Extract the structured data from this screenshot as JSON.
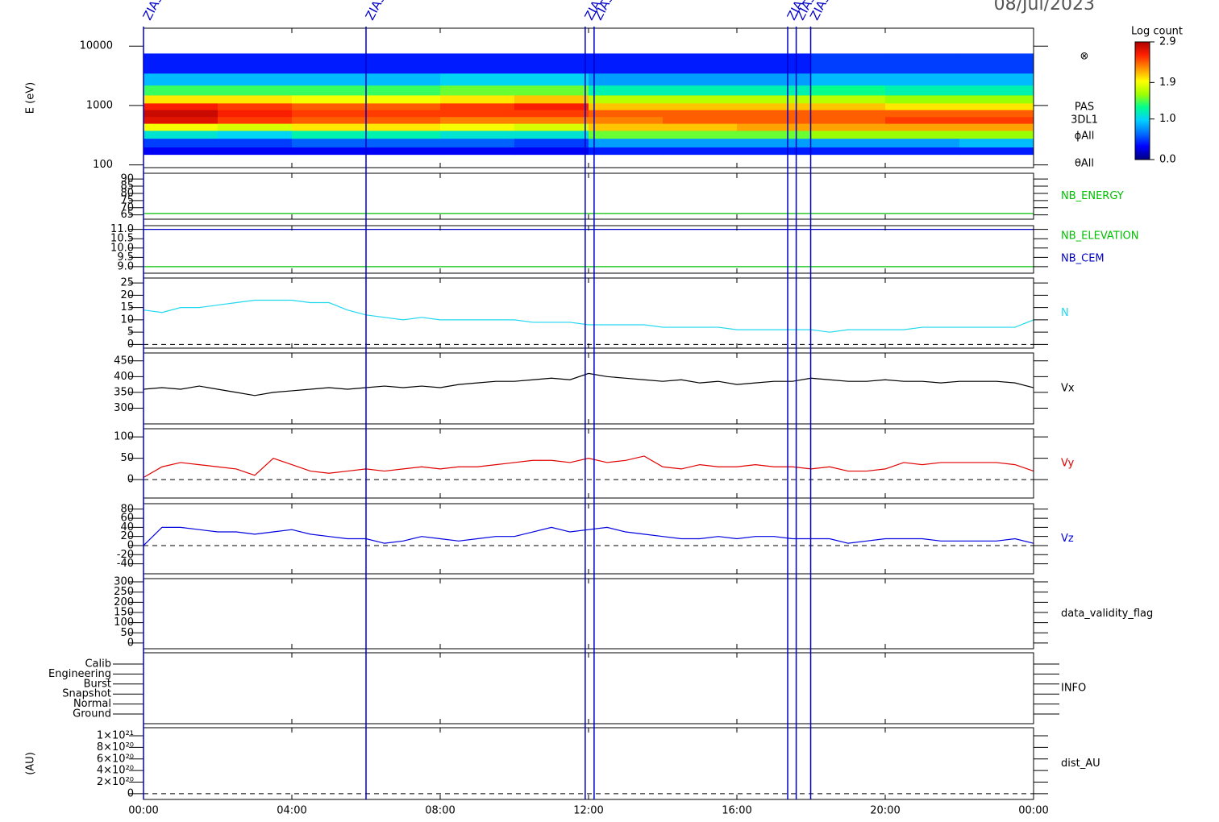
{
  "chart_data": {
    "type": "multi-panel",
    "date": "08/Jul/2023",
    "xlim": [
      0,
      24
    ],
    "xticks": [
      {
        "value": 0,
        "label": "00:00"
      },
      {
        "value": 4,
        "label": "04:00"
      },
      {
        "value": 8,
        "label": "08:00"
      },
      {
        "value": 12,
        "label": "12:00"
      },
      {
        "value": 16,
        "label": "16:00"
      },
      {
        "value": 20,
        "label": "20:00"
      },
      {
        "value": 24,
        "label": "00:00"
      }
    ],
    "x": [
      0,
      0.5,
      1,
      1.5,
      2,
      2.5,
      3,
      3.5,
      4,
      4.5,
      5,
      5.5,
      6,
      6.5,
      7,
      7.5,
      8,
      8.5,
      9,
      9.5,
      10,
      10.5,
      11,
      11.5,
      12,
      12.5,
      13,
      13.5,
      14,
      14.5,
      15,
      15.5,
      16,
      16.5,
      17,
      17.5,
      18,
      18.5,
      19,
      19.5,
      20,
      20.5,
      21,
      21.5,
      22,
      22.5,
      23,
      23.5,
      24
    ],
    "markers": [
      {
        "x": 0,
        "label": "ZIAS"
      },
      {
        "x": 6.0,
        "label": "ZIAS"
      },
      {
        "x": 11.91,
        "label": "ZIAS"
      },
      {
        "x": 12.15,
        "label": "ZIAS"
      },
      {
        "x": 17.37,
        "label": "ZIAS"
      },
      {
        "x": 17.6,
        "label": "ZIAS"
      },
      {
        "x": 17.99,
        "label": "ZIAS"
      }
    ],
    "panels": [
      {
        "type": "spectrogram",
        "ylabel": "E (eV)",
        "log": true,
        "ylim": [
          90,
          20000
        ],
        "yticks": [
          100,
          1000,
          10000
        ],
        "side_labels": [
          "⊗",
          "PAS",
          "3DL1",
          "ϕAll",
          "θAll"
        ],
        "colorbar_label": "Log count",
        "zlim": [
          0,
          2.9
        ],
        "zticks": [
          {
            "value": 0,
            "label": "0.0"
          },
          {
            "value": 1,
            "label": "1.0"
          },
          1.9,
          2.9
        ],
        "colormap": [
          "#000080",
          "#0000ff",
          "#0070ff",
          "#00d0ff",
          "#00ff90",
          "#a0ff00",
          "#ffff00",
          "#ff9000",
          "#ff2000",
          "#b00000"
        ],
        "xbins": [
          0,
          2,
          4,
          6,
          8,
          10,
          12,
          14,
          16,
          18,
          20,
          22,
          24
        ],
        "ybins": [
          150,
          200,
          280,
          380,
          500,
          650,
          850,
          1100,
          1500,
          2200,
          3500,
          7500
        ],
        "z": [
          [
            0.3,
            0.5,
            1.1,
            1.9,
            2.7,
            2.8,
            2.6,
            2.0,
            1.4,
            0.9,
            0.4
          ],
          [
            0.3,
            0.5,
            1.0,
            1.8,
            2.5,
            2.6,
            2.5,
            2.0,
            1.4,
            0.9,
            0.4
          ],
          [
            0.3,
            0.6,
            1.2,
            2.0,
            2.4,
            2.5,
            2.4,
            1.9,
            1.4,
            0.9,
            0.4
          ],
          [
            0.3,
            0.6,
            1.2,
            2.0,
            2.4,
            2.5,
            2.4,
            1.9,
            1.4,
            0.9,
            0.4
          ],
          [
            0.3,
            0.6,
            1.1,
            1.9,
            2.3,
            2.5,
            2.5,
            2.0,
            1.5,
            1.0,
            0.4
          ],
          [
            0.3,
            0.5,
            1.1,
            1.8,
            2.3,
            2.5,
            2.6,
            2.1,
            1.5,
            1.0,
            0.4
          ],
          [
            0.4,
            0.8,
            1.5,
            2.1,
            2.3,
            2.4,
            2.1,
            1.7,
            1.2,
            0.8,
            0.4
          ],
          [
            0.4,
            0.8,
            1.5,
            2.1,
            2.4,
            2.4,
            2.1,
            1.7,
            1.2,
            0.8,
            0.4
          ],
          [
            0.4,
            0.8,
            1.5,
            2.2,
            2.4,
            2.4,
            2.1,
            1.7,
            1.2,
            0.8,
            0.4
          ],
          [
            0.4,
            0.8,
            1.6,
            2.2,
            2.4,
            2.4,
            2.1,
            1.7,
            1.3,
            0.9,
            0.5
          ],
          [
            0.4,
            0.8,
            1.6,
            2.2,
            2.5,
            2.4,
            2.0,
            1.6,
            1.2,
            0.9,
            0.5
          ],
          [
            0.4,
            0.9,
            1.6,
            2.2,
            2.5,
            2.4,
            2.0,
            1.6,
            1.2,
            0.9,
            0.5
          ]
        ]
      },
      {
        "type": "line",
        "ylim": [
          62,
          94
        ],
        "yticks": [
          65,
          70,
          75,
          80,
          85,
          90
        ],
        "series": [
          {
            "name": "NB_ENERGY",
            "color": "#00c000",
            "x": [
              0,
              24
            ],
            "values": [
              66,
              66
            ]
          }
        ]
      },
      {
        "type": "line",
        "ylim": [
          8.65,
          11.2
        ],
        "yticks": [
          {
            "value": 9,
            "label": "9.0"
          },
          9.5,
          {
            "value": 10,
            "label": "10.0"
          },
          10.5,
          {
            "value": 11,
            "label": "11.0"
          }
        ],
        "series": [
          {
            "name": "NB_ELEVATION",
            "color": "#00c000",
            "x": [
              0,
              24
            ],
            "values": [
              9,
              9
            ]
          },
          {
            "name": "NB_CEM",
            "color": "#0000c0",
            "x": [
              0,
              24
            ],
            "values": [
              11,
              11
            ]
          }
        ]
      },
      {
        "type": "line",
        "ylim": [
          -1.5,
          27
        ],
        "yticks": [
          0,
          5,
          10,
          15,
          20,
          25
        ],
        "refline": 0,
        "series": [
          {
            "name": "N",
            "color": "#20d8f0",
            "values": [
              14,
              13,
              15,
              15,
              16,
              17,
              18,
              18,
              18,
              17,
              17,
              14,
              12,
              11,
              10,
              11,
              10,
              10,
              10,
              10,
              10,
              9,
              9,
              9,
              8,
              8,
              8,
              8,
              7,
              7,
              7,
              7,
              6,
              6,
              6,
              6,
              6,
              5,
              6,
              6,
              6,
              6,
              7,
              7,
              7,
              7,
              7,
              7,
              10
            ]
          }
        ]
      },
      {
        "type": "line",
        "ylim": [
          250,
          475
        ],
        "yticks": [
          300,
          350,
          400,
          450
        ],
        "series": [
          {
            "name": "Vx",
            "color": "#000000",
            "values": [
              360,
              365,
              360,
              370,
              360,
              350,
              340,
              350,
              355,
              360,
              365,
              360,
              365,
              370,
              365,
              370,
              365,
              375,
              380,
              385,
              385,
              390,
              395,
              390,
              410,
              400,
              395,
              390,
              385,
              390,
              380,
              385,
              375,
              380,
              385,
              385,
              395,
              390,
              385,
              385,
              390,
              385,
              385,
              380,
              385,
              385,
              385,
              380,
              365
            ]
          }
        ]
      },
      {
        "type": "line",
        "ylim": [
          -43,
          119
        ],
        "yticks": [
          0,
          50,
          100
        ],
        "refline": 0,
        "series": [
          {
            "name": "Vy",
            "color": "#e00000",
            "values": [
              5,
              30,
              40,
              35,
              30,
              25,
              10,
              50,
              35,
              20,
              15,
              20,
              25,
              20,
              25,
              30,
              25,
              30,
              30,
              35,
              40,
              45,
              45,
              40,
              50,
              40,
              45,
              55,
              30,
              25,
              35,
              30,
              30,
              35,
              30,
              30,
              25,
              30,
              20,
              20,
              25,
              40,
              35,
              40,
              40,
              40,
              40,
              35,
              20
            ]
          }
        ]
      },
      {
        "type": "line",
        "ylim": [
          -62,
          92
        ],
        "yticks": [
          -40,
          -20,
          0,
          20,
          40,
          60,
          80
        ],
        "refline": 0,
        "series": [
          {
            "name": "Vz",
            "color": "#0000e0",
            "values": [
              0,
              40,
              40,
              35,
              30,
              30,
              25,
              30,
              35,
              25,
              20,
              15,
              15,
              5,
              10,
              20,
              15,
              10,
              15,
              20,
              20,
              30,
              40,
              30,
              35,
              40,
              30,
              25,
              20,
              15,
              15,
              20,
              15,
              20,
              20,
              15,
              15,
              15,
              5,
              10,
              15,
              15,
              15,
              10,
              10,
              10,
              10,
              15,
              5
            ]
          }
        ]
      },
      {
        "type": "empty",
        "ylim": [
          -28,
          316
        ],
        "yticks": [
          0,
          50,
          100,
          150,
          200,
          250,
          300
        ],
        "label": "data_validity_flag"
      },
      {
        "type": "category",
        "categories": [
          "Calib",
          "Engineering",
          "Burst",
          "Snapshot",
          "Normal",
          "Ground"
        ],
        "label": "INFO"
      },
      {
        "type": "empty",
        "ylabel": "(AU)",
        "ylim": [
          -1e+20,
          1.14e+21
        ],
        "refline": 0,
        "label": "dist_AU",
        "yticks": [
          0,
          {
            "value": 2e+20,
            "label": "2×10²⁰"
          },
          {
            "value": 4e+20,
            "label": "4×10²⁰"
          },
          {
            "value": 6e+20,
            "label": "6×10²⁰"
          },
          {
            "value": 8e+20,
            "label": "8×10²⁰"
          },
          {
            "value": 1e+21,
            "label": "1×10²¹"
          }
        ]
      }
    ]
  }
}
